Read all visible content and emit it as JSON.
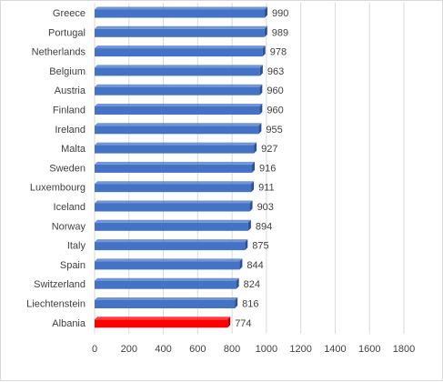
{
  "chart_data": {
    "type": "bar",
    "orientation": "horizontal",
    "categories": [
      "Greece",
      "Portugal",
      "Netherlands",
      "Belgium",
      "Austria",
      "Finland",
      "Ireland",
      "Malta",
      "Sweden",
      "Luxembourg",
      "Iceland",
      "Norway",
      "Italy",
      "Spain",
      "Switzerland",
      "Liechtenstein",
      "Albania"
    ],
    "values": [
      990,
      989,
      978,
      963,
      960,
      960,
      955,
      927,
      916,
      911,
      903,
      894,
      875,
      844,
      824,
      816,
      774
    ],
    "value_labels": [
      "990",
      "989",
      "978",
      "963",
      "960",
      "960",
      "955",
      "927",
      "916",
      "911",
      "903",
      "894",
      "875",
      "844",
      "824",
      "816",
      "774"
    ],
    "xlim": [
      0,
      1800
    ],
    "xticks": [
      "0",
      "200",
      "400",
      "600",
      "800",
      "1000",
      "1200",
      "1400",
      "1600",
      "1800"
    ],
    "grid": "vertical",
    "legend": "none",
    "colors": {
      "default_bar": "#4472c4",
      "default_bar_side": "#2f528f",
      "highlight_bar": "#ff0000",
      "highlight_bar_side": "#b00000",
      "highlight_category": "Albania",
      "gridline": "#d9d9d9",
      "text": "#404040"
    }
  }
}
